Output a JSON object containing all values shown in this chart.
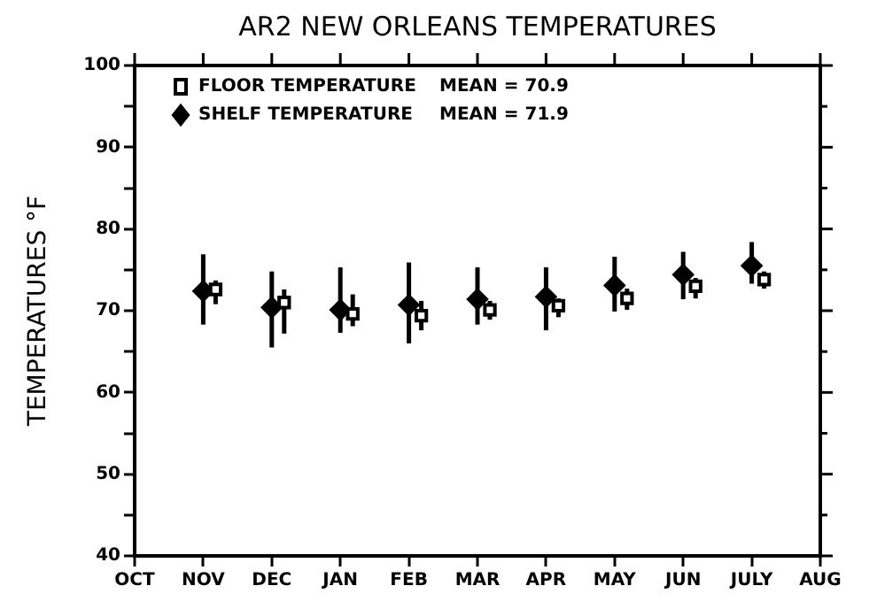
{
  "chart_data": {
    "type": "scatter",
    "title": "AR2 NEW ORLEANS TEMPERATURES",
    "ylabel": "TEMPERATURES °F",
    "categories": [
      "OCT",
      "NOV",
      "DEC",
      "JAN",
      "FEB",
      "MAR",
      "APR",
      "MAY",
      "JUN",
      "JULY",
      "AUG"
    ],
    "series": [
      {
        "name": "FLOOR TEMPERATURE",
        "color": "#000000",
        "marker": "square",
        "values": [
          null,
          72.6,
          71.0,
          69.6,
          69.4,
          70.1,
          70.6,
          71.5,
          73.0,
          73.8,
          null
        ],
        "errors": [
          null,
          [
            70.8,
            73.7
          ],
          [
            67.2,
            72.6
          ],
          [
            68.1,
            72.0
          ],
          [
            67.6,
            71.2
          ],
          [
            68.9,
            71.2
          ],
          [
            69.2,
            71.5
          ],
          [
            70.1,
            72.7
          ],
          [
            71.5,
            74.0
          ],
          [
            72.7,
            74.8
          ],
          null
        ]
      },
      {
        "name": "SHELF TEMPERATURE",
        "color": "#000000",
        "marker": "diamond",
        "values": [
          null,
          72.4,
          70.4,
          70.1,
          70.7,
          71.4,
          71.7,
          73.1,
          74.4,
          75.5,
          null
        ],
        "errors": [
          null,
          [
            68.3,
            76.9
          ],
          [
            65.5,
            74.8
          ],
          [
            67.3,
            75.3
          ],
          [
            66.0,
            75.9
          ],
          [
            68.3,
            75.3
          ],
          [
            67.6,
            75.3
          ],
          [
            69.9,
            76.6
          ],
          [
            71.4,
            77.2
          ],
          [
            73.3,
            78.4
          ],
          null
        ]
      }
    ],
    "annotations": [
      "MEAN = 70.9",
      "MEAN = 71.9"
    ],
    "ylim": [
      40,
      100
    ],
    "yticks": [
      40,
      {
        "value": 45,
        "label": null
      },
      50,
      {
        "value": 55,
        "label": null
      },
      60,
      {
        "value": 65,
        "label": null
      },
      70,
      {
        "value": 75,
        "label": null
      },
      80,
      {
        "value": 85,
        "label": null
      },
      90,
      {
        "value": 95,
        "label": null
      },
      100
    ],
    "legend": "top left",
    "grid": false
  }
}
